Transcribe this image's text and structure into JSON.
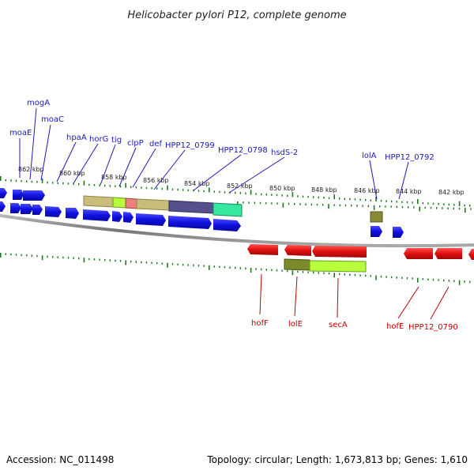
{
  "title": "Helicobacter pylori P12, complete genome",
  "footer": {
    "accession": "Accession: NC_011498",
    "summary": "Topology: circular; Length: 1,673,813 bp; Genes: 1,610"
  },
  "scale_labels": [
    "862 kbp",
    "860 kbp",
    "858 kbp",
    "856 kbp",
    "854 kbp",
    "852 kbp",
    "850 kbp",
    "848 kbp",
    "846 kbp",
    "844 kbp",
    "842 kbp"
  ],
  "genes_top": [
    "moaE",
    "mogA",
    "moaC",
    "hpaA",
    "horG",
    "tig",
    "clpP",
    "def",
    "HPP12_0799",
    "HPP12_0798",
    "hsdS-2",
    "lolA",
    "HPP12_0792"
  ],
  "genes_bottom": [
    "hofF",
    "lolE",
    "secA",
    "hofE",
    "HPP12_0790"
  ],
  "colors": {
    "forward": "#1010e0",
    "reverse": "#e01010",
    "ticks": "#1a7a1a",
    "backbone": "#888888",
    "labels_top": "#1a1ab8",
    "labels_bottom": "#c40000"
  }
}
